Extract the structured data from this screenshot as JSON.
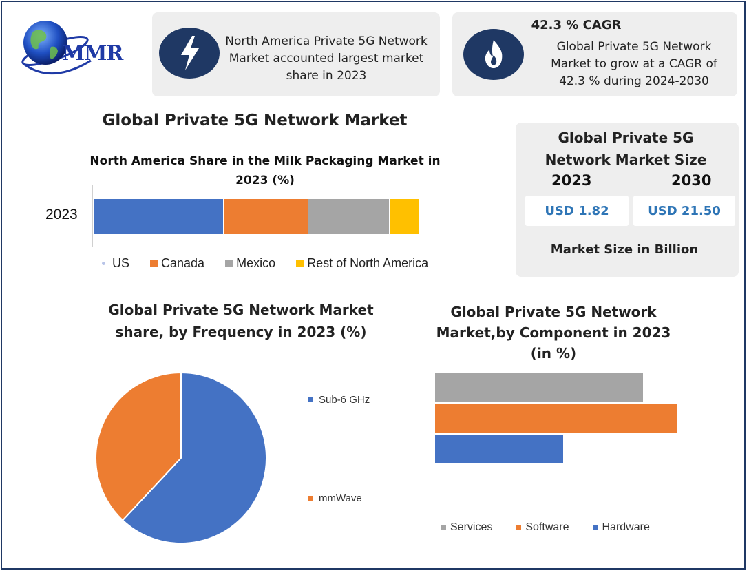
{
  "brand": {
    "logo_text": "MMR"
  },
  "highlights": {
    "region_text": "North America Private 5G Network Market accounted largest market share in 2023",
    "cagr_title": "42.3 % CAGR",
    "cagr_text": "Global Private 5G Network Market to grow at a CAGR of 42.3 % during 2024-2030"
  },
  "main_title": "Global Private 5G Network Market",
  "market_size": {
    "title": "Global Private 5G Network Market Size",
    "year_a": "2023",
    "year_b": "2030",
    "value_a": "USD 1.82",
    "value_b": "USD 21.50",
    "note": "Market Size in Billion"
  },
  "colors": {
    "blue": "#4472c4",
    "orange": "#ed7d31",
    "gray": "#a5a5a5",
    "yellow": "#ffc000",
    "navy": "#1f3864",
    "accent_text": "#2e75b6"
  },
  "chart_data": [
    {
      "type": "bar",
      "orientation": "horizontal-stacked",
      "title": "North America Share in the Milk Packaging Market in 2023 (%)",
      "categories": [
        "2023"
      ],
      "series": [
        {
          "name": "US",
          "values": [
            40
          ],
          "color": "#4472c4"
        },
        {
          "name": "Canada",
          "values": [
            26
          ],
          "color": "#ed7d31"
        },
        {
          "name": "Mexico",
          "values": [
            25
          ],
          "color": "#a5a5a5"
        },
        {
          "name": "Rest of North America",
          "values": [
            9
          ],
          "color": "#ffc000"
        }
      ],
      "legend": "bottom"
    },
    {
      "type": "pie",
      "title": "Global Private 5G Network Market share, by Frequency in 2023  (%)",
      "slices": [
        {
          "name": "Sub-6 GHz",
          "value": 62,
          "color": "#4472c4"
        },
        {
          "name": "mmWave",
          "value": 38,
          "color": "#ed7d31"
        }
      ],
      "legend": "right"
    },
    {
      "type": "bar",
      "orientation": "horizontal",
      "title": "Global Private 5G Network Market,by Component in 2023 (in %)",
      "series": [
        {
          "name": "Services",
          "values": [
            30
          ],
          "color": "#a5a5a5"
        },
        {
          "name": "Software",
          "values": [
            35
          ],
          "color": "#ed7d31"
        },
        {
          "name": "Hardware",
          "values": [
            18.5
          ],
          "color": "#4472c4"
        }
      ],
      "legend": "bottom"
    }
  ]
}
